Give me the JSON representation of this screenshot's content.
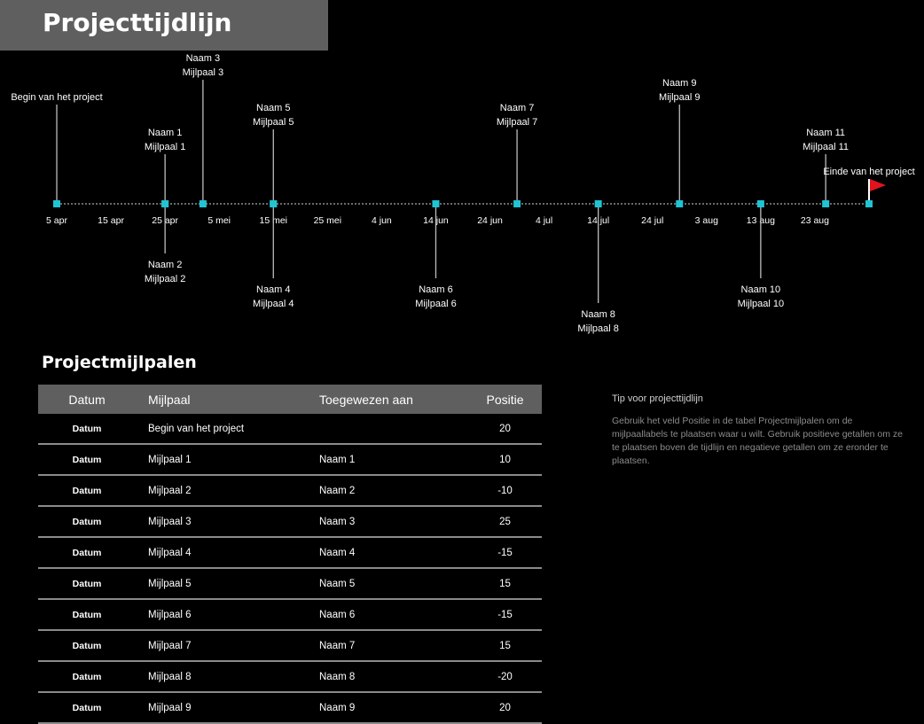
{
  "header": {
    "title": "Projecttijdlijn"
  },
  "colors": {
    "accent": "#21c4d2",
    "axis": "#6a6a6a",
    "flag": "#e0141e",
    "header_bg": "#5f5f5f"
  },
  "chart_data": {
    "type": "timeline",
    "title": "",
    "x_range": [
      "2015-04-05",
      "2015-09-02"
    ],
    "ticks": [
      {
        "date": "2015-04-05",
        "label": "5 apr"
      },
      {
        "date": "2015-04-15",
        "label": "15 apr"
      },
      {
        "date": "2015-04-25",
        "label": "25 apr"
      },
      {
        "date": "2015-05-05",
        "label": "5 mei"
      },
      {
        "date": "2015-05-15",
        "label": "15 mei"
      },
      {
        "date": "2015-05-25",
        "label": "25 mei"
      },
      {
        "date": "2015-06-04",
        "label": "4 jun"
      },
      {
        "date": "2015-06-14",
        "label": "14 jun"
      },
      {
        "date": "2015-06-24",
        "label": "24 jun"
      },
      {
        "date": "2015-07-04",
        "label": "4 jul"
      },
      {
        "date": "2015-07-14",
        "label": "14 jul"
      },
      {
        "date": "2015-07-24",
        "label": "24 jul"
      },
      {
        "date": "2015-08-03",
        "label": "3 aug"
      },
      {
        "date": "2015-08-13",
        "label": "13 aug"
      },
      {
        "date": "2015-08-23",
        "label": "23 aug"
      }
    ],
    "milestones": [
      {
        "date": "2015-04-05",
        "position": 20,
        "lines": [
          "Begin van het project"
        ]
      },
      {
        "date": "2015-04-25",
        "position": 10,
        "lines": [
          "Naam 1",
          "Mijlpaal 1"
        ]
      },
      {
        "date": "2015-04-25",
        "position": -10,
        "lines": [
          "Naam 2",
          "Mijlpaal 2"
        ]
      },
      {
        "date": "2015-05-02",
        "position": 25,
        "lines": [
          "Naam 3",
          "Mijlpaal 3"
        ]
      },
      {
        "date": "2015-05-15",
        "position": -15,
        "lines": [
          "Naam 4",
          "Mijlpaal 4"
        ]
      },
      {
        "date": "2015-05-15",
        "position": 15,
        "lines": [
          "Naam 5",
          "Mijlpaal 5"
        ]
      },
      {
        "date": "2015-06-14",
        "position": -15,
        "lines": [
          "Naam 6",
          "Mijlpaal 6"
        ]
      },
      {
        "date": "2015-06-29",
        "position": 15,
        "lines": [
          "Naam 7",
          "Mijlpaal 7"
        ]
      },
      {
        "date": "2015-07-14",
        "position": -20,
        "lines": [
          "Naam 8",
          "Mijlpaal 8"
        ]
      },
      {
        "date": "2015-07-29",
        "position": 20,
        "lines": [
          "Naam 9",
          "Mijlpaal 9"
        ]
      },
      {
        "date": "2015-08-13",
        "position": -15,
        "lines": [
          "Naam 10",
          "Mijlpaal 10"
        ]
      },
      {
        "date": "2015-08-25",
        "position": 10,
        "lines": [
          "Naam 11",
          "Mijlpaal 11"
        ]
      },
      {
        "date": "2015-09-02",
        "position": 5,
        "lines": [
          "Einde van het project"
        ]
      }
    ]
  },
  "table": {
    "section_title": "Projectmijlpalen",
    "columns": [
      "Datum",
      "Mijlpaal",
      "Toegewezen aan",
      "Positie"
    ],
    "rows": [
      [
        "Datum",
        "Begin van het project",
        "",
        "20"
      ],
      [
        "Datum",
        "Mijlpaal 1",
        "Naam 1",
        "10"
      ],
      [
        "Datum",
        "Mijlpaal 2",
        "Naam 2",
        "-10"
      ],
      [
        "Datum",
        "Mijlpaal 3",
        "Naam 3",
        "25"
      ],
      [
        "Datum",
        "Mijlpaal 4",
        "Naam 4",
        "-15"
      ],
      [
        "Datum",
        "Mijlpaal 5",
        "Naam 5",
        "15"
      ],
      [
        "Datum",
        "Mijlpaal 6",
        "Naam 6",
        "-15"
      ],
      [
        "Datum",
        "Mijlpaal 7",
        "Naam 7",
        "15"
      ],
      [
        "Datum",
        "Mijlpaal 8",
        "Naam 8",
        "-20"
      ],
      [
        "Datum",
        "Mijlpaal 9",
        "Naam 9",
        "20"
      ]
    ]
  },
  "tip": {
    "title": "Tip voor projecttijdlijn",
    "body": "Gebruik het veld Positie in de tabel Projectmijlpalen om de mijlpaallabels te plaatsen waar u wilt. Gebruik positieve getallen om ze te plaatsen boven de tijdlijn en negatieve getallen om ze eronder te plaatsen."
  }
}
